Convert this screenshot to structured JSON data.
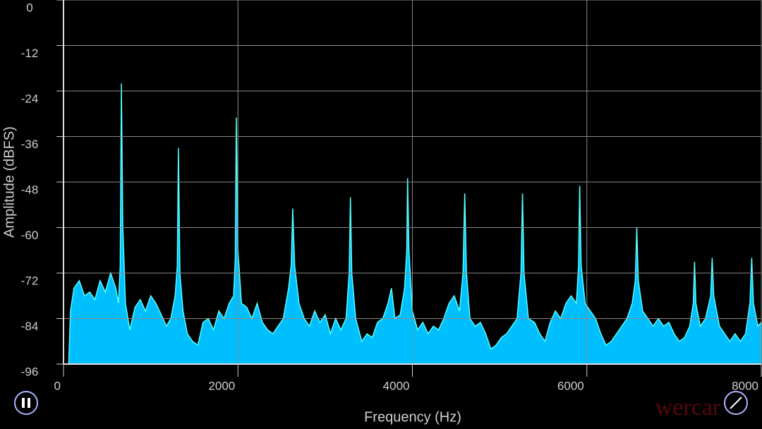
{
  "chart_data": {
    "type": "area",
    "xlabel": "Frequency (Hz)",
    "ylabel": "Amplitude (dBFS)",
    "watermark": "wercar",
    "xlim": [
      0,
      8000
    ],
    "xticks": [
      0,
      2000,
      4000,
      6000,
      8000
    ],
    "ylim": [
      -96,
      0
    ],
    "yticks": [
      0,
      -12,
      -24,
      -36,
      -48,
      -60,
      -72,
      -84,
      -96
    ],
    "grid": true,
    "series": [
      {
        "color": "#00bfff",
        "x": [
          60,
          80,
          120,
          180,
          240,
          300,
          360,
          420,
          480,
          540,
          600,
          630,
          650,
          663,
          680,
          710,
          760,
          820,
          880,
          940,
          1000,
          1060,
          1120,
          1180,
          1230,
          1280,
          1305,
          1318,
          1335,
          1370,
          1420,
          1480,
          1540,
          1600,
          1660,
          1720,
          1780,
          1840,
          1900,
          1950,
          1970,
          1981,
          2000,
          2040,
          2100,
          2160,
          2220,
          2280,
          2340,
          2400,
          2460,
          2520,
          2580,
          2610,
          2628,
          2650,
          2700,
          2760,
          2820,
          2880,
          2940,
          3000,
          3060,
          3120,
          3180,
          3240,
          3275,
          3290,
          3305,
          3350,
          3420,
          3480,
          3540,
          3600,
          3660,
          3720,
          3760,
          3800,
          3860,
          3910,
          3935,
          3945,
          3960,
          4000,
          4060,
          4120,
          4180,
          4240,
          4300,
          4360,
          4420,
          4480,
          4540,
          4580,
          4600,
          4620,
          4660,
          4720,
          4780,
          4840,
          4900,
          4960,
          5020,
          5080,
          5140,
          5200,
          5245,
          5263,
          5280,
          5330,
          5400,
          5460,
          5520,
          5580,
          5640,
          5700,
          5760,
          5820,
          5880,
          5905,
          5918,
          5935,
          5980,
          6040,
          6100,
          6160,
          6220,
          6280,
          6340,
          6400,
          6460,
          6520,
          6555,
          6572,
          6590,
          6640,
          6700,
          6760,
          6820,
          6880,
          6940,
          7000,
          7060,
          7120,
          7180,
          7220,
          7235,
          7250,
          7300,
          7360,
          7420,
          7437,
          7455,
          7520,
          7580,
          7640,
          7700,
          7760,
          7820,
          7870,
          7890,
          7910,
          7960,
          8000
        ],
        "values": [
          -96,
          -82,
          -76,
          -74,
          -78,
          -77,
          -79,
          -74,
          -77,
          -72,
          -76,
          -80,
          -70,
          -22,
          -60,
          -80,
          -87,
          -81,
          -79,
          -82,
          -78,
          -80,
          -83,
          -86,
          -84,
          -78,
          -70,
          -39,
          -72,
          -82,
          -88,
          -90,
          -91,
          -85,
          -84,
          -87,
          -82,
          -84,
          -80,
          -78,
          -68,
          -31,
          -66,
          -80,
          -81,
          -84,
          -80,
          -85,
          -87,
          -88,
          -86,
          -84,
          -76,
          -70,
          -55,
          -70,
          -80,
          -84,
          -86,
          -82,
          -85,
          -83,
          -88,
          -84,
          -87,
          -84,
          -72,
          -52,
          -72,
          -84,
          -90,
          -88,
          -89,
          -85,
          -84,
          -80,
          -76,
          -84,
          -83,
          -76,
          -66,
          -47,
          -66,
          -82,
          -87,
          -85,
          -88,
          -86,
          -87,
          -84,
          -80,
          -78,
          -82,
          -72,
          -51,
          -72,
          -84,
          -86,
          -85,
          -88,
          -92,
          -91,
          -89,
          -88,
          -86,
          -84,
          -72,
          -51,
          -72,
          -84,
          -85,
          -88,
          -90,
          -85,
          -82,
          -84,
          -80,
          -78,
          -80,
          -70,
          -49,
          -70,
          -80,
          -82,
          -84,
          -88,
          -91,
          -90,
          -88,
          -86,
          -84,
          -80,
          -74,
          -60,
          -74,
          -82,
          -84,
          -86,
          -84,
          -86,
          -85,
          -88,
          -90,
          -89,
          -86,
          -80,
          -69,
          -80,
          -86,
          -84,
          -78,
          -68,
          -78,
          -86,
          -88,
          -90,
          -88,
          -90,
          -88,
          -80,
          -68,
          -80,
          -86,
          -85
        ]
      }
    ]
  }
}
